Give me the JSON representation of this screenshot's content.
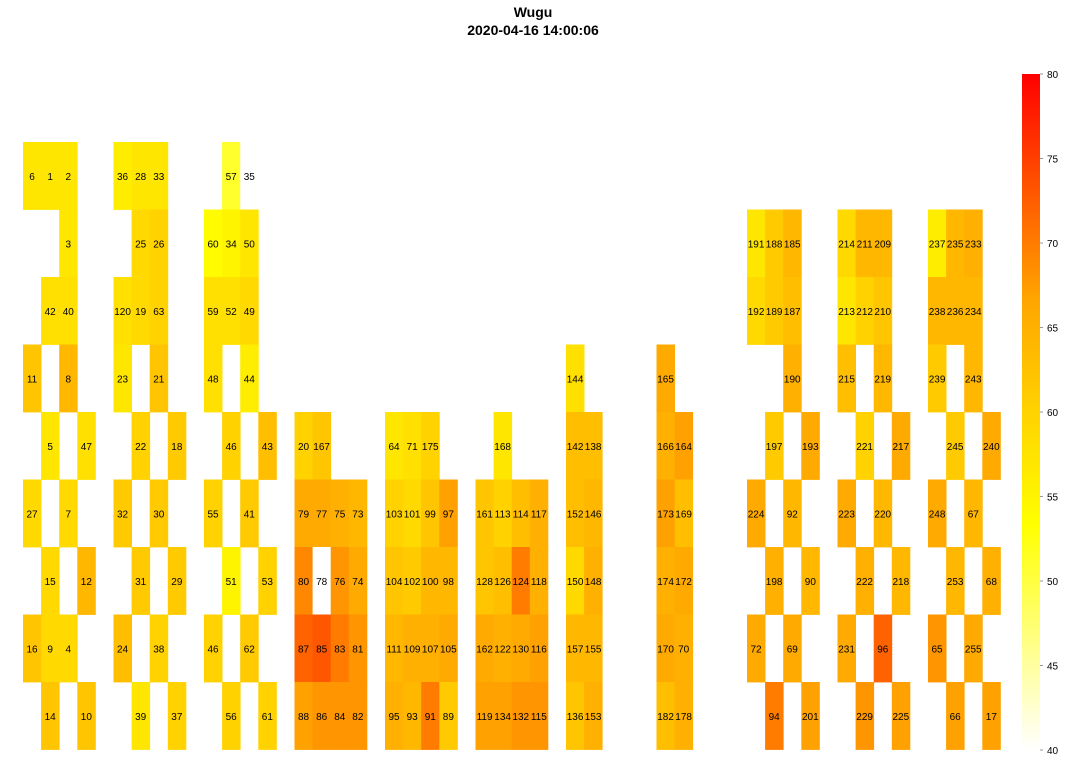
{
  "title": "Wugu",
  "subtitle": "2020-04-16 14:00:06",
  "colorbar": {
    "min": 40,
    "max": 80,
    "ticks": [
      40,
      45,
      50,
      55,
      60,
      65,
      70,
      75,
      80
    ],
    "tick_labels": [
      "40",
      "45",
      "50",
      "55",
      "60",
      "65",
      "70",
      "75",
      "80"
    ],
    "colors": [
      "#FFFFFF",
      "#FFFF00",
      "#FFA500",
      "#FF0000"
    ]
  },
  "chart_data": {
    "type": "heatmap",
    "title": "Wugu",
    "subtitle": "2020-04-16 14:00:06",
    "value_range": [
      40,
      80
    ],
    "cells": [
      {
        "col": 0,
        "row": 0,
        "label": "6",
        "value": 57
      },
      {
        "col": 1,
        "row": 0,
        "label": "1",
        "value": 57
      },
      {
        "col": 2,
        "row": 0,
        "label": "2",
        "value": 57
      },
      {
        "col": 2,
        "row": 1,
        "label": "3",
        "value": 57
      },
      {
        "col": 1,
        "row": 2,
        "label": "42",
        "value": 58
      },
      {
        "col": 2,
        "row": 2,
        "label": "40",
        "value": 58
      },
      {
        "col": 0,
        "row": 3,
        "label": "11",
        "value": 62
      },
      {
        "col": 2,
        "row": 3,
        "label": "8",
        "value": 64
      },
      {
        "col": 1,
        "row": 4,
        "label": "5",
        "value": 57
      },
      {
        "col": 3,
        "row": 4,
        "label": "47",
        "value": 58
      },
      {
        "col": 0,
        "row": 5,
        "label": "27",
        "value": 59
      },
      {
        "col": 2,
        "row": 5,
        "label": "7",
        "value": 59
      },
      {
        "col": 1,
        "row": 6,
        "label": "15",
        "value": 59
      },
      {
        "col": 3,
        "row": 6,
        "label": "12",
        "value": 64
      },
      {
        "col": 0,
        "row": 7,
        "label": "16",
        "value": 62
      },
      {
        "col": 1,
        "row": 7,
        "label": "9",
        "value": 59
      },
      {
        "col": 2,
        "row": 7,
        "label": "4",
        "value": 59
      },
      {
        "col": 1,
        "row": 8,
        "label": "14",
        "value": 62
      },
      {
        "col": 3,
        "row": 8,
        "label": "10",
        "value": 62
      },
      {
        "col": 5,
        "row": 0,
        "label": "36",
        "value": 56
      },
      {
        "col": 6,
        "row": 0,
        "label": "28",
        "value": 57
      },
      {
        "col": 7,
        "row": 0,
        "label": "33",
        "value": 57
      },
      {
        "col": 6,
        "row": 1,
        "label": "25",
        "value": 59
      },
      {
        "col": 7,
        "row": 1,
        "label": "26",
        "value": 60
      },
      {
        "col": 5,
        "row": 2,
        "label": "120",
        "value": 58
      },
      {
        "col": 6,
        "row": 2,
        "label": "19",
        "value": 59
      },
      {
        "col": 7,
        "row": 2,
        "label": "63",
        "value": 60
      },
      {
        "col": 5,
        "row": 3,
        "label": "23",
        "value": 57
      },
      {
        "col": 7,
        "row": 3,
        "label": "21",
        "value": 62
      },
      {
        "col": 6,
        "row": 4,
        "label": "22",
        "value": 60
      },
      {
        "col": 8,
        "row": 4,
        "label": "18",
        "value": 61
      },
      {
        "col": 5,
        "row": 5,
        "label": "32",
        "value": 61
      },
      {
        "col": 7,
        "row": 5,
        "label": "30",
        "value": 61
      },
      {
        "col": 6,
        "row": 6,
        "label": "31",
        "value": 61
      },
      {
        "col": 8,
        "row": 6,
        "label": "29",
        "value": 61
      },
      {
        "col": 5,
        "row": 7,
        "label": "24",
        "value": 63
      },
      {
        "col": 7,
        "row": 7,
        "label": "38",
        "value": 60
      },
      {
        "col": 6,
        "row": 8,
        "label": "39",
        "value": 57
      },
      {
        "col": 8,
        "row": 8,
        "label": "37",
        "value": 60
      },
      {
        "col": 11,
        "row": 0,
        "label": "57",
        "value": 51
      },
      {
        "col": 12,
        "row": 0,
        "label": "35",
        "value": 40
      },
      {
        "col": 10,
        "row": 1,
        "label": "60",
        "value": 54
      },
      {
        "col": 11,
        "row": 1,
        "label": "34",
        "value": 55
      },
      {
        "col": 12,
        "row": 1,
        "label": "50",
        "value": 57
      },
      {
        "col": 10,
        "row": 2,
        "label": "59",
        "value": 58
      },
      {
        "col": 11,
        "row": 2,
        "label": "52",
        "value": 58
      },
      {
        "col": 12,
        "row": 2,
        "label": "49",
        "value": 59
      },
      {
        "col": 10,
        "row": 3,
        "label": "48",
        "value": 58
      },
      {
        "col": 12,
        "row": 3,
        "label": "44",
        "value": 56
      },
      {
        "col": 11,
        "row": 4,
        "label": "46",
        "value": 60
      },
      {
        "col": 13,
        "row": 4,
        "label": "43",
        "value": 63
      },
      {
        "col": 10,
        "row": 5,
        "label": "55",
        "value": 60
      },
      {
        "col": 12,
        "row": 5,
        "label": "41",
        "value": 61
      },
      {
        "col": 11,
        "row": 6,
        "label": "51",
        "value": 55
      },
      {
        "col": 13,
        "row": 6,
        "label": "53",
        "value": 60
      },
      {
        "col": 10,
        "row": 7,
        "label": "46",
        "value": 60
      },
      {
        "col": 12,
        "row": 7,
        "label": "62",
        "value": 61
      },
      {
        "col": 11,
        "row": 8,
        "label": "56",
        "value": 60
      },
      {
        "col": 13,
        "row": 8,
        "label": "61",
        "value": 60
      },
      {
        "col": 15,
        "row": 4,
        "label": "20",
        "value": 60
      },
      {
        "col": 16,
        "row": 4,
        "label": "167",
        "value": 62
      },
      {
        "col": 15,
        "row": 5,
        "label": "79",
        "value": 66
      },
      {
        "col": 16,
        "row": 5,
        "label": "77",
        "value": 66
      },
      {
        "col": 17,
        "row": 5,
        "label": "75",
        "value": 65
      },
      {
        "col": 18,
        "row": 5,
        "label": "73",
        "value": 64
      },
      {
        "col": 15,
        "row": 6,
        "label": "80",
        "value": 69
      },
      {
        "col": 16,
        "row": 6,
        "label": "78",
        "value": 40
      },
      {
        "col": 17,
        "row": 6,
        "label": "76",
        "value": 68
      },
      {
        "col": 18,
        "row": 6,
        "label": "74",
        "value": 66
      },
      {
        "col": 15,
        "row": 7,
        "label": "87",
        "value": 72
      },
      {
        "col": 16,
        "row": 7,
        "label": "85",
        "value": 73
      },
      {
        "col": 17,
        "row": 7,
        "label": "83",
        "value": 70
      },
      {
        "col": 18,
        "row": 7,
        "label": "81",
        "value": 68
      },
      {
        "col": 15,
        "row": 8,
        "label": "88",
        "value": 67
      },
      {
        "col": 16,
        "row": 8,
        "label": "86",
        "value": 68
      },
      {
        "col": 17,
        "row": 8,
        "label": "84",
        "value": 68
      },
      {
        "col": 18,
        "row": 8,
        "label": "82",
        "value": 68
      },
      {
        "col": 20,
        "row": 4,
        "label": "64",
        "value": 57
      },
      {
        "col": 21,
        "row": 4,
        "label": "71",
        "value": 58
      },
      {
        "col": 22,
        "row": 4,
        "label": "175",
        "value": 60
      },
      {
        "col": 20,
        "row": 5,
        "label": "103",
        "value": 60
      },
      {
        "col": 21,
        "row": 5,
        "label": "101",
        "value": 59
      },
      {
        "col": 22,
        "row": 5,
        "label": "99",
        "value": 62
      },
      {
        "col": 23,
        "row": 5,
        "label": "97",
        "value": 67
      },
      {
        "col": 20,
        "row": 6,
        "label": "104",
        "value": 62
      },
      {
        "col": 21,
        "row": 6,
        "label": "102",
        "value": 61
      },
      {
        "col": 22,
        "row": 6,
        "label": "100",
        "value": 64
      },
      {
        "col": 23,
        "row": 6,
        "label": "98",
        "value": 64
      },
      {
        "col": 20,
        "row": 7,
        "label": "111",
        "value": 64
      },
      {
        "col": 21,
        "row": 7,
        "label": "109",
        "value": 65
      },
      {
        "col": 22,
        "row": 7,
        "label": "107",
        "value": 65
      },
      {
        "col": 23,
        "row": 7,
        "label": "105",
        "value": 66
      },
      {
        "col": 20,
        "row": 8,
        "label": "95",
        "value": 65
      },
      {
        "col": 21,
        "row": 8,
        "label": "93",
        "value": 64
      },
      {
        "col": 22,
        "row": 8,
        "label": "91",
        "value": 70
      },
      {
        "col": 23,
        "row": 8,
        "label": "89",
        "value": 61
      },
      {
        "col": 26,
        "row": 4,
        "label": "168",
        "value": 57
      },
      {
        "col": 25,
        "row": 5,
        "label": "161",
        "value": 62
      },
      {
        "col": 26,
        "row": 5,
        "label": "113",
        "value": 60
      },
      {
        "col": 27,
        "row": 5,
        "label": "114",
        "value": 63
      },
      {
        "col": 28,
        "row": 5,
        "label": "117",
        "value": 65
      },
      {
        "col": 25,
        "row": 6,
        "label": "128",
        "value": 62
      },
      {
        "col": 26,
        "row": 6,
        "label": "126",
        "value": 63
      },
      {
        "col": 27,
        "row": 6,
        "label": "124",
        "value": 70
      },
      {
        "col": 28,
        "row": 6,
        "label": "118",
        "value": 65
      },
      {
        "col": 25,
        "row": 7,
        "label": "162",
        "value": 66
      },
      {
        "col": 26,
        "row": 7,
        "label": "122",
        "value": 65
      },
      {
        "col": 27,
        "row": 7,
        "label": "130",
        "value": 66
      },
      {
        "col": 28,
        "row": 7,
        "label": "116",
        "value": 67
      },
      {
        "col": 25,
        "row": 8,
        "label": "119",
        "value": 67
      },
      {
        "col": 26,
        "row": 8,
        "label": "134",
        "value": 67
      },
      {
        "col": 27,
        "row": 8,
        "label": "132",
        "value": 68
      },
      {
        "col": 28,
        "row": 8,
        "label": "115",
        "value": 68
      },
      {
        "col": 30,
        "row": 3,
        "label": "144",
        "value": 58
      },
      {
        "col": 30,
        "row": 4,
        "label": "142",
        "value": 63
      },
      {
        "col": 31,
        "row": 4,
        "label": "138",
        "value": 63
      },
      {
        "col": 30,
        "row": 5,
        "label": "152",
        "value": 63
      },
      {
        "col": 31,
        "row": 5,
        "label": "146",
        "value": 64
      },
      {
        "col": 30,
        "row": 6,
        "label": "150",
        "value": 59
      },
      {
        "col": 31,
        "row": 6,
        "label": "148",
        "value": 65
      },
      {
        "col": 30,
        "row": 7,
        "label": "157",
        "value": 64
      },
      {
        "col": 31,
        "row": 7,
        "label": "155",
        "value": 64
      },
      {
        "col": 30,
        "row": 8,
        "label": "136",
        "value": 62
      },
      {
        "col": 31,
        "row": 8,
        "label": "153",
        "value": 65
      },
      {
        "col": 35,
        "row": 3,
        "label": "165",
        "value": 66
      },
      {
        "col": 35,
        "row": 4,
        "label": "166",
        "value": 65
      },
      {
        "col": 36,
        "row": 4,
        "label": "164",
        "value": 67
      },
      {
        "col": 35,
        "row": 5,
        "label": "173",
        "value": 67
      },
      {
        "col": 36,
        "row": 5,
        "label": "169",
        "value": 63
      },
      {
        "col": 35,
        "row": 6,
        "label": "174",
        "value": 65
      },
      {
        "col": 36,
        "row": 6,
        "label": "172",
        "value": 66
      },
      {
        "col": 35,
        "row": 7,
        "label": "170",
        "value": 66
      },
      {
        "col": 36,
        "row": 7,
        "label": "70",
        "value": 65
      },
      {
        "col": 35,
        "row": 8,
        "label": "182",
        "value": 63
      },
      {
        "col": 36,
        "row": 8,
        "label": "178",
        "value": 65
      },
      {
        "col": 40,
        "row": 1,
        "label": "191",
        "value": 57
      },
      {
        "col": 41,
        "row": 1,
        "label": "188",
        "value": 61
      },
      {
        "col": 42,
        "row": 1,
        "label": "185",
        "value": 64
      },
      {
        "col": 40,
        "row": 2,
        "label": "192",
        "value": 59
      },
      {
        "col": 41,
        "row": 2,
        "label": "189",
        "value": 61
      },
      {
        "col": 42,
        "row": 2,
        "label": "187",
        "value": 63
      },
      {
        "col": 42,
        "row": 3,
        "label": "190",
        "value": 65
      },
      {
        "col": 41,
        "row": 4,
        "label": "197",
        "value": 61
      },
      {
        "col": 43,
        "row": 4,
        "label": "193",
        "value": 66
      },
      {
        "col": 40,
        "row": 5,
        "label": "224",
        "value": 66
      },
      {
        "col": 42,
        "row": 5,
        "label": "92",
        "value": 64
      },
      {
        "col": 41,
        "row": 6,
        "label": "198",
        "value": 65
      },
      {
        "col": 43,
        "row": 6,
        "label": "90",
        "value": 64
      },
      {
        "col": 40,
        "row": 7,
        "label": "72",
        "value": 66
      },
      {
        "col": 42,
        "row": 7,
        "label": "69",
        "value": 66
      },
      {
        "col": 41,
        "row": 8,
        "label": "94",
        "value": 70
      },
      {
        "col": 43,
        "row": 8,
        "label": "201",
        "value": 67
      },
      {
        "col": 45,
        "row": 1,
        "label": "214",
        "value": 59
      },
      {
        "col": 46,
        "row": 1,
        "label": "211",
        "value": 64
      },
      {
        "col": 47,
        "row": 1,
        "label": "209",
        "value": 64
      },
      {
        "col": 45,
        "row": 2,
        "label": "213",
        "value": 57
      },
      {
        "col": 46,
        "row": 2,
        "label": "212",
        "value": 60
      },
      {
        "col": 47,
        "row": 2,
        "label": "210",
        "value": 62
      },
      {
        "col": 45,
        "row": 3,
        "label": "215",
        "value": 63
      },
      {
        "col": 47,
        "row": 3,
        "label": "219",
        "value": 64
      },
      {
        "col": 46,
        "row": 4,
        "label": "221",
        "value": 60
      },
      {
        "col": 48,
        "row": 4,
        "label": "217",
        "value": 66
      },
      {
        "col": 45,
        "row": 5,
        "label": "223",
        "value": 66
      },
      {
        "col": 47,
        "row": 5,
        "label": "220",
        "value": 64
      },
      {
        "col": 46,
        "row": 6,
        "label": "222",
        "value": 65
      },
      {
        "col": 48,
        "row": 6,
        "label": "218",
        "value": 64
      },
      {
        "col": 45,
        "row": 7,
        "label": "231",
        "value": 66
      },
      {
        "col": 47,
        "row": 7,
        "label": "96",
        "value": 72
      },
      {
        "col": 46,
        "row": 8,
        "label": "229",
        "value": 68
      },
      {
        "col": 48,
        "row": 8,
        "label": "225",
        "value": 67
      },
      {
        "col": 50,
        "row": 1,
        "label": "237",
        "value": 56
      },
      {
        "col": 51,
        "row": 1,
        "label": "235",
        "value": 64
      },
      {
        "col": 52,
        "row": 1,
        "label": "233",
        "value": 65
      },
      {
        "col": 50,
        "row": 2,
        "label": "238",
        "value": 64
      },
      {
        "col": 51,
        "row": 2,
        "label": "236",
        "value": 64
      },
      {
        "col": 52,
        "row": 2,
        "label": "234",
        "value": 64
      },
      {
        "col": 50,
        "row": 3,
        "label": "239",
        "value": 61
      },
      {
        "col": 52,
        "row": 3,
        "label": "243",
        "value": 64
      },
      {
        "col": 51,
        "row": 4,
        "label": "245",
        "value": 61
      },
      {
        "col": 53,
        "row": 4,
        "label": "240",
        "value": 66
      },
      {
        "col": 50,
        "row": 5,
        "label": "248",
        "value": 66
      },
      {
        "col": 52,
        "row": 5,
        "label": "67",
        "value": 64
      },
      {
        "col": 51,
        "row": 6,
        "label": "253",
        "value": 64
      },
      {
        "col": 53,
        "row": 6,
        "label": "68",
        "value": 65
      },
      {
        "col": 50,
        "row": 7,
        "label": "65",
        "value": 68
      },
      {
        "col": 52,
        "row": 7,
        "label": "255",
        "value": 66
      },
      {
        "col": 51,
        "row": 8,
        "label": "66",
        "value": 67
      },
      {
        "col": 53,
        "row": 8,
        "label": "17",
        "value": 67
      }
    ]
  }
}
